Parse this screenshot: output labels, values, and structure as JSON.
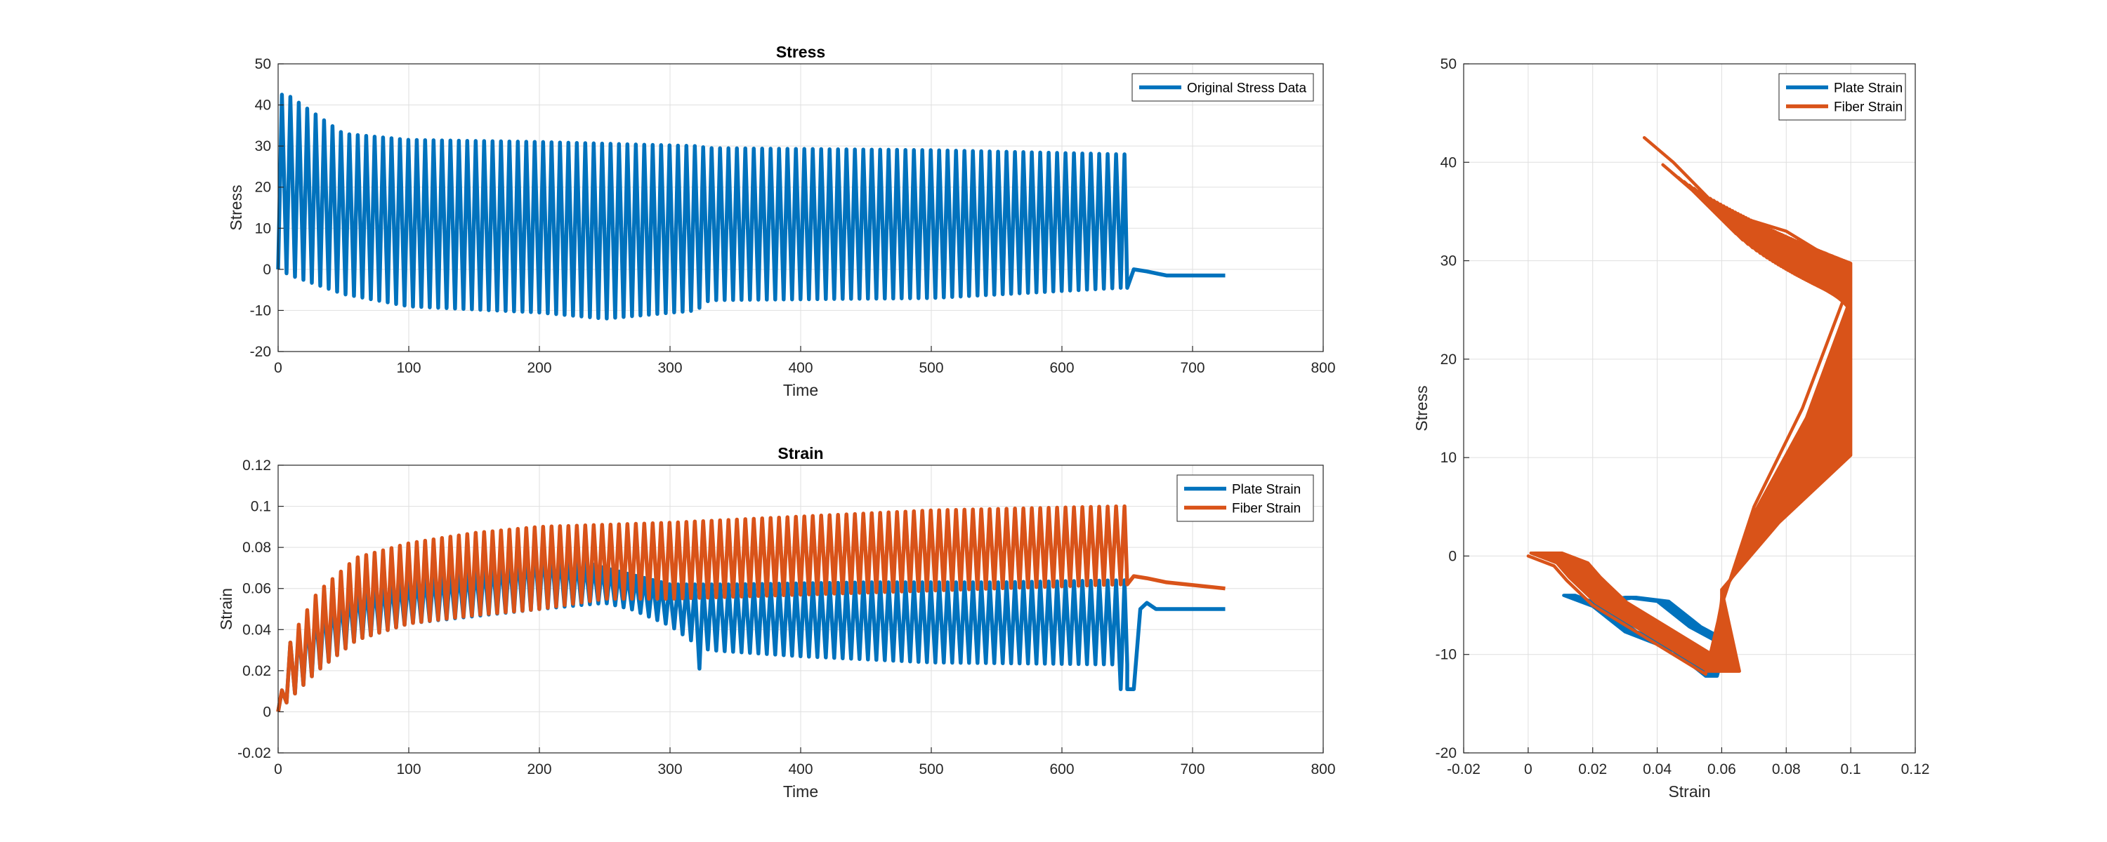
{
  "chart_data": [
    {
      "id": "stress",
      "type": "line",
      "title": "Stress",
      "xlabel": "Time",
      "ylabel": "Stress",
      "xlim": [
        0,
        800
      ],
      "ylim": [
        -20,
        50
      ],
      "xticks": [
        "0",
        "100",
        "200",
        "300",
        "400",
        "500",
        "600",
        "700",
        "800"
      ],
      "yticks": [
        "-20",
        "-10",
        "0",
        "10",
        "20",
        "30",
        "40",
        "50"
      ],
      "grid": true,
      "legend_position": "top-right",
      "cycle_period": 6.45,
      "cycles_end_time": 650,
      "series": [
        {
          "name": "Original Stress Data",
          "color": "#0072BD",
          "peaks": [
            [
              7,
              42.5
            ],
            [
              50,
              33
            ],
            [
              100,
              31.5
            ],
            [
              200,
              31
            ],
            [
              320,
              30
            ],
            [
              330,
              29.5
            ],
            [
              500,
              29
            ],
            [
              645,
              28
            ]
          ],
          "troughs": [
            [
              0,
              0
            ],
            [
              10,
              -1.5
            ],
            [
              50,
              -6
            ],
            [
              100,
              -9
            ],
            [
              200,
              -10.5
            ],
            [
              250,
              -12
            ],
            [
              320,
              -10
            ],
            [
              330,
              -7.5
            ],
            [
              500,
              -7
            ],
            [
              645,
              -4.5
            ]
          ],
          "tail": [
            [
              650,
              -4.5
            ],
            [
              655,
              0
            ],
            [
              665,
              -0.5
            ],
            [
              680,
              -1.5
            ],
            [
              725,
              -1.5
            ]
          ]
        }
      ]
    },
    {
      "id": "strain",
      "type": "line",
      "title": "Strain",
      "xlabel": "Time",
      "ylabel": "Strain",
      "xlim": [
        0,
        800
      ],
      "ylim": [
        -0.02,
        0.12
      ],
      "xticks": [
        "0",
        "100",
        "200",
        "300",
        "400",
        "500",
        "600",
        "700",
        "800"
      ],
      "yticks": [
        "-0.02",
        "0",
        "0.02",
        "0.04",
        "0.06",
        "0.08",
        "0.1",
        "0.12"
      ],
      "grid": true,
      "legend_position": "top-right",
      "cycle_period": 6.45,
      "cycles_end_time": 650,
      "series": [
        {
          "name": "Plate Strain",
          "color": "#0072BD",
          "peaks": [
            [
              0,
              0
            ],
            [
              10,
              0.036
            ],
            [
              30,
              0.05
            ],
            [
              60,
              0.06
            ],
            [
              100,
              0.065
            ],
            [
              150,
              0.07
            ],
            [
              200,
              0.08
            ],
            [
              250,
              0.07
            ],
            [
              300,
              0.062
            ],
            [
              350,
              0.062
            ],
            [
              450,
              0.063
            ],
            [
              550,
              0.063
            ],
            [
              645,
              0.064
            ]
          ],
          "troughs": [
            [
              0,
              0
            ],
            [
              10,
              0.007
            ],
            [
              30,
              0.02
            ],
            [
              60,
              0.035
            ],
            [
              100,
              0.043
            ],
            [
              200,
              0.05
            ],
            [
              250,
              0.053
            ],
            [
              270,
              0.05
            ],
            [
              300,
              0.042
            ],
            [
              320,
              0.033
            ],
            [
              330,
              0.03
            ],
            [
              400,
              0.027
            ],
            [
              500,
              0.024
            ],
            [
              645,
              0.023
            ]
          ],
          "spikes": [
            [
              325,
              0.021
            ],
            [
              648,
              0.011
            ]
          ],
          "tail": [
            [
              650,
              0.011
            ],
            [
              655,
              0.011
            ],
            [
              660,
              0.05
            ],
            [
              665,
              0.053
            ],
            [
              672,
              0.05
            ],
            [
              725,
              0.05
            ]
          ]
        },
        {
          "name": "Fiber Strain",
          "color": "#D95319",
          "peaks": [
            [
              0,
              0
            ],
            [
              10,
              0.036
            ],
            [
              30,
              0.058
            ],
            [
              60,
              0.075
            ],
            [
              100,
              0.082
            ],
            [
              150,
              0.087
            ],
            [
              200,
              0.09
            ],
            [
              300,
              0.092
            ],
            [
              400,
              0.095
            ],
            [
              500,
              0.098
            ],
            [
              645,
              0.1
            ]
          ],
          "troughs": [
            [
              0,
              0
            ],
            [
              10,
              0.007
            ],
            [
              30,
              0.02
            ],
            [
              60,
              0.035
            ],
            [
              100,
              0.043
            ],
            [
              150,
              0.047
            ],
            [
              200,
              0.05
            ],
            [
              250,
              0.055
            ],
            [
              300,
              0.055
            ],
            [
              400,
              0.057
            ],
            [
              500,
              0.059
            ],
            [
              645,
              0.062
            ]
          ],
          "tail": [
            [
              650,
              0.062
            ],
            [
              655,
              0.066
            ],
            [
              665,
              0.065
            ],
            [
              680,
              0.063
            ],
            [
              725,
              0.06
            ]
          ]
        }
      ]
    },
    {
      "id": "stress-strain",
      "type": "line",
      "title": "",
      "xlabel": "Strain",
      "ylabel": "Stress",
      "xlim": [
        -0.02,
        0.12
      ],
      "ylim": [
        -20,
        50
      ],
      "xticks": [
        "-0.02",
        "0",
        "0.02",
        "0.04",
        "0.06",
        "0.08",
        "0.1",
        "0.12"
      ],
      "yticks": [
        "-20",
        "-10",
        "0",
        "10",
        "20",
        "30",
        "40",
        "50"
      ],
      "grid": true,
      "legend_position": "top-right",
      "series": [
        {
          "name": "Plate Strain",
          "color": "#0072BD",
          "anchors": [
            [
              0.011,
              -3.8
            ],
            [
              0.02,
              -5.5
            ],
            [
              0.03,
              -7.5
            ],
            [
              0.045,
              -10
            ],
            [
              0.055,
              -12
            ],
            [
              0.058,
              -9
            ],
            [
              0.05,
              -7
            ],
            [
              0.04,
              -5
            ],
            [
              0.03,
              -4
            ],
            [
              0.022,
              -5
            ]
          ]
        },
        {
          "name": "Fiber Strain",
          "color": "#D95319",
          "anchors": [
            [
              0,
              0
            ],
            [
              0.008,
              -1
            ],
            [
              0.012,
              -2.5
            ],
            [
              0.02,
              -5
            ],
            [
              0.03,
              -7
            ],
            [
              0.045,
              -10
            ],
            [
              0.055,
              -12
            ],
            [
              0.06,
              -5
            ],
            [
              0.07,
              5
            ],
            [
              0.085,
              15
            ],
            [
              0.1,
              28
            ],
            [
              0.1,
              29
            ],
            [
              0.09,
              31
            ],
            [
              0.08,
              33
            ],
            [
              0.06,
              35
            ],
            [
              0.045,
              40
            ],
            [
              0.036,
              42.5
            ]
          ]
        }
      ]
    }
  ]
}
